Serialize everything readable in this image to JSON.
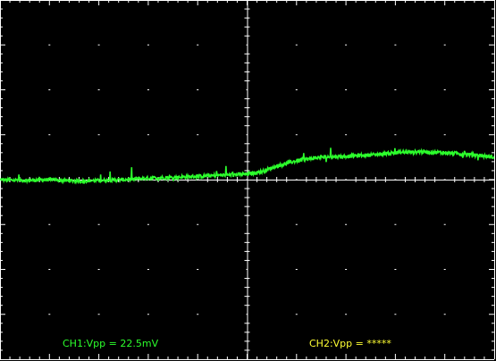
{
  "chart_data": {
    "type": "line",
    "grid": true,
    "divisions": {
      "x": 10,
      "y": 8
    },
    "ylim": [
      -4,
      4
    ],
    "xlim": [
      0,
      10
    ],
    "series": [
      {
        "color": "#2cff2c",
        "x": [
          0,
          0.5,
          1,
          1.5,
          2,
          2.5,
          3,
          3.5,
          4,
          4.5,
          5,
          5.3,
          5.6,
          6,
          6.5,
          7,
          7.5,
          8,
          8.5,
          9,
          9.5,
          10
        ],
        "values": [
          0.0,
          -0.02,
          0.0,
          -0.03,
          -0.02,
          0.0,
          0.03,
          0.05,
          0.07,
          0.1,
          0.12,
          0.18,
          0.3,
          0.42,
          0.5,
          0.52,
          0.55,
          0.6,
          0.62,
          0.6,
          0.56,
          0.5
        ]
      }
    ],
    "annotations": [
      {
        "id": "ch1",
        "text": "CH1:Vpp = 22.5mV",
        "color": "#2cff2c"
      },
      {
        "id": "ch2",
        "text": "CH2:Vpp = *****",
        "color": "#ffff33"
      }
    ]
  },
  "colors": {
    "background": "#000000",
    "grid": "#ffffff",
    "ch1": "#2cff2c",
    "ch2": "#ffff33"
  }
}
